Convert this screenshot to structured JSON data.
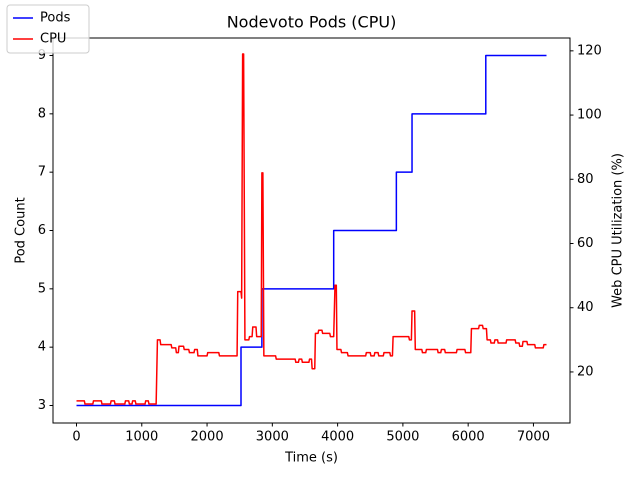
{
  "chart_data": {
    "type": "line",
    "title": "Nodevoto Pods (CPU)",
    "x_label": "Time (s)",
    "y_label": "Pod Count",
    "y2_label": "Web CPU Utilization (%)",
    "xlim": [
      -360,
      7560
    ],
    "xticks": [
      0,
      1000,
      2000,
      3000,
      4000,
      5000,
      6000,
      7000
    ],
    "ylim": [
      2.7,
      9.3
    ],
    "yticks": [
      3,
      4,
      5,
      6,
      7,
      8,
      9
    ],
    "y2lim": [
      4.1,
      124
    ],
    "y2ticks": [
      20,
      40,
      60,
      80,
      100,
      120
    ],
    "grid": false,
    "legend": "upper left",
    "series": [
      {
        "name": "Pods",
        "color": "#0000ff",
        "x": [
          0,
          2520,
          2520,
          2840,
          2840,
          3940,
          3940,
          4900,
          4900,
          5140,
          5140,
          6270,
          6270,
          7200
        ],
        "values": [
          3,
          3,
          4,
          4,
          5,
          5,
          6,
          6,
          7,
          7,
          8,
          8,
          9,
          9
        ]
      },
      {
        "name": "CPU",
        "color": "#ff0000",
        "axis": "y2",
        "x": [
          0,
          120,
          130,
          250,
          260,
          380,
          390,
          520,
          530,
          580,
          590,
          740,
          750,
          800,
          810,
          850,
          860,
          900,
          910,
          1050,
          1060,
          1100,
          1110,
          1220,
          1240,
          1280,
          1290,
          1450,
          1460,
          1520,
          1530,
          1560,
          1570,
          1640,
          1650,
          1720,
          1730,
          1800,
          1810,
          1850,
          1860,
          2000,
          2010,
          2180,
          2190,
          2460,
          2470,
          2520,
          2530,
          2545,
          2560,
          2580,
          2640,
          2650,
          2690,
          2700,
          2750,
          2760,
          2830,
          2840,
          2855,
          2870,
          3050,
          3060,
          3350,
          3360,
          3400,
          3410,
          3450,
          3460,
          3560,
          3570,
          3600,
          3610,
          3650,
          3660,
          3700,
          3710,
          3760,
          3770,
          3880,
          3890,
          3940,
          3960,
          3980,
          3990,
          4050,
          4060,
          4150,
          4160,
          4430,
          4440,
          4500,
          4510,
          4560,
          4570,
          4620,
          4630,
          4700,
          4710,
          4800,
          4810,
          4840,
          4850,
          5090,
          5100,
          5130,
          5140,
          5180,
          5190,
          5290,
          5300,
          5350,
          5360,
          5530,
          5540,
          5580,
          5590,
          5640,
          5650,
          5820,
          5830,
          5950,
          5960,
          6040,
          6050,
          6160,
          6170,
          6220,
          6230,
          6280,
          6290,
          6340,
          6350,
          6400,
          6410,
          6450,
          6460,
          6580,
          6590,
          6720,
          6730,
          6780,
          6790,
          6830,
          6840,
          6900,
          6910,
          7020,
          7030,
          7150,
          7160,
          7200
        ],
        "values": [
          11,
          11,
          10,
          10,
          11,
          11,
          10,
          10,
          11,
          11,
          10,
          10,
          11,
          11,
          10,
          10,
          11,
          11,
          10,
          10,
          11,
          11,
          10,
          10,
          30,
          30,
          28.5,
          28.5,
          27.5,
          27.5,
          26,
          26,
          28,
          28,
          27,
          27,
          26,
          26,
          27,
          27,
          25,
          25,
          26,
          26,
          25,
          25,
          45,
          45,
          43,
          119,
          119,
          30,
          30,
          31,
          31,
          34,
          34,
          31,
          31,
          82,
          82,
          25,
          25,
          24,
          24,
          23,
          23,
          24,
          24,
          23,
          23,
          24,
          24,
          21,
          21,
          32,
          32,
          33,
          33,
          32,
          32,
          31,
          31,
          47,
          47,
          27,
          27,
          26,
          26,
          25,
          25,
          26,
          26,
          25,
          25,
          26,
          26,
          25,
          25,
          26,
          26,
          25,
          25,
          31,
          31,
          30,
          30,
          39,
          39,
          27,
          27,
          26,
          26,
          27,
          27,
          26,
          26,
          27,
          27,
          26,
          26,
          27,
          27,
          26,
          26,
          33.5,
          33.5,
          34.5,
          34.5,
          33.5,
          33.5,
          30,
          30,
          29,
          29,
          30,
          30,
          29,
          29,
          30,
          30,
          29,
          29,
          28,
          28,
          29.5,
          29.5,
          28.5,
          28.5,
          27.5,
          27.5,
          28.5,
          28.5
        ]
      }
    ]
  }
}
